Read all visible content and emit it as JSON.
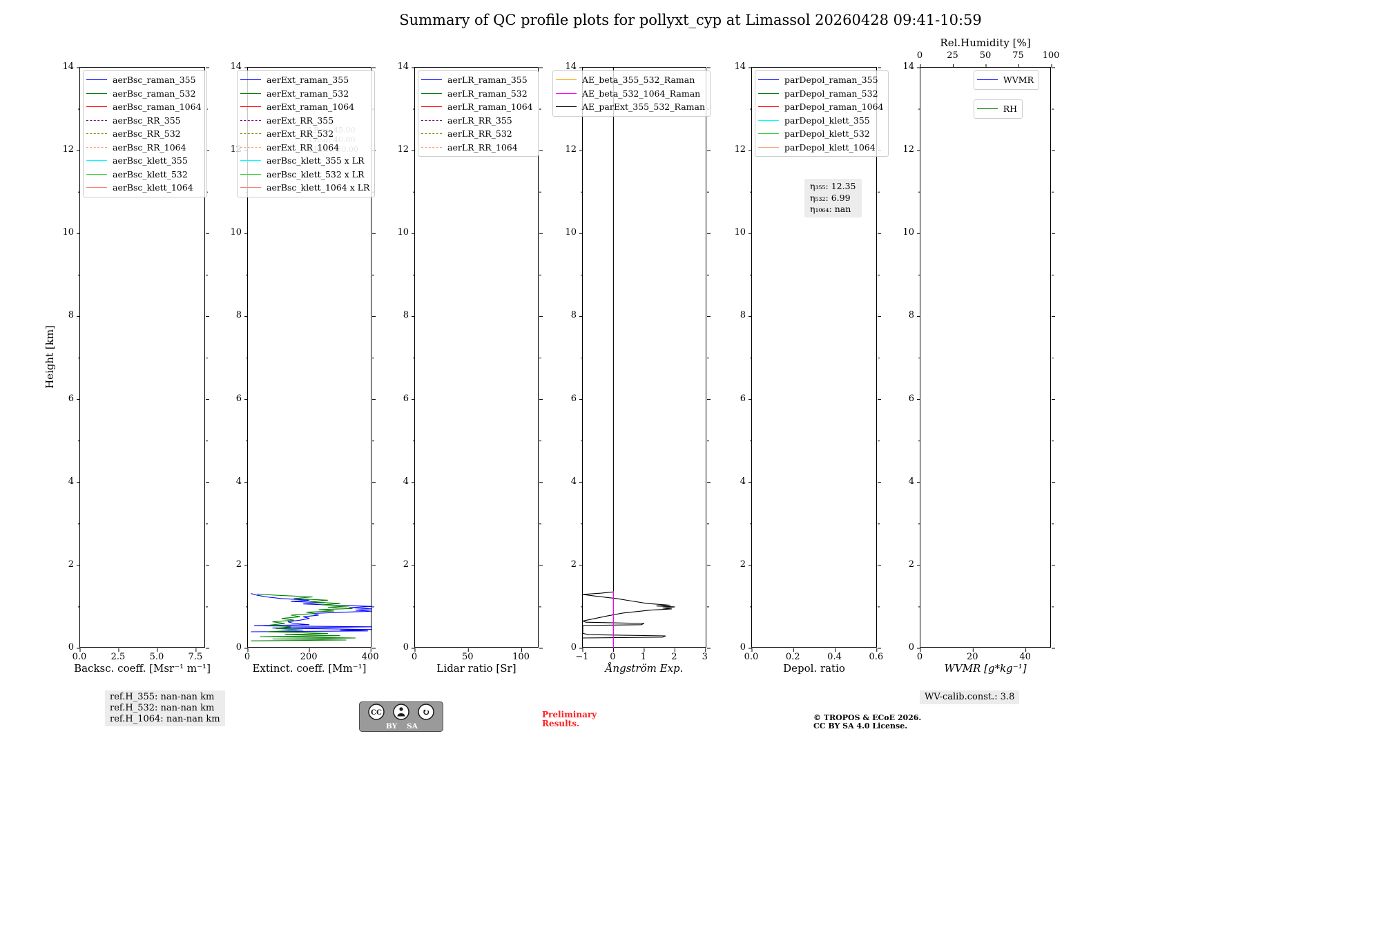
{
  "title": "Summary of QC profile plots for pollyxt_cyp at Limassol 20260428 09:41-10:59",
  "chart_data": {
    "type": "line",
    "title": "Summary of QC profile plots for pollyxt_cyp at Limassol 20260428 09:41-10:59",
    "ylabel": "Height [km]",
    "ylim": [
      0,
      14
    ],
    "y_ticks": [
      0,
      2,
      4,
      6,
      8,
      10,
      12,
      14
    ],
    "panels": [
      {
        "id": "backscatter",
        "xlabel": "Backsc. coeff. [Msr⁻¹ m⁻¹]",
        "italic_xlabel": false,
        "xlim": [
          0,
          8.13
        ],
        "x_ticks": [
          0,
          2.5,
          5,
          7.5
        ],
        "x_tick_labels": [
          "0.0",
          "2.5",
          "5.0",
          "7.5"
        ],
        "legend": [
          {
            "label": "aerBsc_raman_355",
            "color": "#0000ff",
            "dash": false
          },
          {
            "label": "aerBsc_raman_532",
            "color": "#008000",
            "dash": false
          },
          {
            "label": "aerBsc_raman_1064",
            "color": "#ff0000",
            "dash": false
          },
          {
            "label": "aerBsc_RR_355",
            "color": "#800080",
            "dash": true
          },
          {
            "label": "aerBsc_RR_532",
            "color": "#8b8b00",
            "dash": true
          },
          {
            "label": "aerBsc_RR_1064",
            "color": "#ffa07a",
            "dash": true
          },
          {
            "label": "aerBsc_klett_355",
            "color": "#00ffff",
            "dash": false
          },
          {
            "label": "aerBsc_klett_532",
            "color": "#32cd32",
            "dash": false
          },
          {
            "label": "aerBsc_klett_1064",
            "color": "#fa8072",
            "dash": false
          }
        ],
        "series": []
      },
      {
        "id": "extinction",
        "xlabel": "Extinct. coeff. [Mm⁻¹]",
        "italic_xlabel": false,
        "xlim": [
          0,
          404
        ],
        "x_ticks": [
          0,
          200,
          400
        ],
        "x_tick_labels": [
          "0",
          "200",
          "400"
        ],
        "watermark": [
          "LR₃₅₅: 45.00",
          "LR₅₃₂: 40.00",
          "LR₁₀₆₄: 50.00"
        ],
        "legend": [
          {
            "label": "aerExt_raman_355",
            "color": "#0000ff",
            "dash": false
          },
          {
            "label": "aerExt_raman_532",
            "color": "#008000",
            "dash": false
          },
          {
            "label": "aerExt_raman_1064",
            "color": "#ff0000",
            "dash": false
          },
          {
            "label": "aerExt_RR_355",
            "color": "#800080",
            "dash": true
          },
          {
            "label": "aerExt_RR_532",
            "color": "#8b8b00",
            "dash": true
          },
          {
            "label": "aerExt_RR_1064",
            "color": "#ffa07a",
            "dash": true
          },
          {
            "label": "aerBsc_klett_355 x LR",
            "color": "#00ffff",
            "dash": false
          },
          {
            "label": "aerBsc_klett_532 x LR",
            "color": "#32cd32",
            "dash": false
          },
          {
            "label": "aerBsc_klett_1064 x LR",
            "color": "#fa8072",
            "dash": false
          }
        ],
        "series": [
          {
            "name": "aerExt_raman_355",
            "color": "#0000ff",
            "points": [
              [
                10,
                0.4
              ],
              [
                390,
                0.42
              ],
              [
                300,
                0.44
              ],
              [
                404,
                0.455
              ],
              [
                80,
                0.49
              ],
              [
                404,
                0.52
              ],
              [
                20,
                0.545
              ],
              [
                200,
                0.57
              ],
              [
                150,
                0.6
              ],
              [
                130,
                0.64
              ],
              [
                170,
                0.68
              ],
              [
                200,
                0.72
              ],
              [
                180,
                0.76
              ],
              [
                230,
                0.8
              ],
              [
                210,
                0.84
              ],
              [
                310,
                0.87
              ],
              [
                404,
                0.895
              ],
              [
                350,
                0.92
              ],
              [
                404,
                0.95
              ],
              [
                330,
                0.98
              ],
              [
                404,
                1.01
              ],
              [
                280,
                1.04
              ],
              [
                180,
                1.07
              ],
              [
                250,
                1.1
              ],
              [
                140,
                1.13
              ],
              [
                200,
                1.16
              ],
              [
                110,
                1.2
              ],
              [
                60,
                1.24
              ],
              [
                30,
                1.28
              ],
              [
                10,
                1.32
              ]
            ]
          },
          {
            "name": "aerExt_raman_532",
            "color": "#008000",
            "points": [
              [
                10,
                0.18
              ],
              [
                320,
                0.2
              ],
              [
                80,
                0.225
              ],
              [
                350,
                0.25
              ],
              [
                40,
                0.28
              ],
              [
                300,
                0.305
              ],
              [
                120,
                0.33
              ],
              [
                260,
                0.36
              ],
              [
                60,
                0.4
              ],
              [
                180,
                0.44
              ],
              [
                90,
                0.48
              ],
              [
                140,
                0.52
              ],
              [
                70,
                0.56
              ],
              [
                120,
                0.6
              ],
              [
                80,
                0.64
              ],
              [
                150,
                0.68
              ],
              [
                110,
                0.72
              ],
              [
                170,
                0.76
              ],
              [
                140,
                0.8
              ],
              [
                220,
                0.84
              ],
              [
                190,
                0.87
              ],
              [
                280,
                0.9
              ],
              [
                230,
                0.93
              ],
              [
                340,
                0.96
              ],
              [
                260,
                0.99
              ],
              [
                330,
                1.02
              ],
              [
                240,
                1.05
              ],
              [
                300,
                1.08
              ],
              [
                200,
                1.12
              ],
              [
                260,
                1.16
              ],
              [
                150,
                1.2
              ],
              [
                210,
                1.24
              ],
              [
                90,
                1.28
              ],
              [
                30,
                1.31
              ]
            ]
          }
        ]
      },
      {
        "id": "lidar-ratio",
        "xlabel": "Lidar ratio [Sr]",
        "italic_xlabel": false,
        "xlim": [
          0,
          116.5
        ],
        "x_ticks": [
          0,
          50,
          100
        ],
        "x_tick_labels": [
          "0",
          "50",
          "100"
        ],
        "legend": [
          {
            "label": "aerLR_raman_355",
            "color": "#0000ff",
            "dash": false
          },
          {
            "label": "aerLR_raman_532",
            "color": "#008000",
            "dash": false
          },
          {
            "label": "aerLR_raman_1064",
            "color": "#ff0000",
            "dash": false
          },
          {
            "label": "aerLR_RR_355",
            "color": "#800080",
            "dash": true
          },
          {
            "label": "aerLR_RR_532",
            "color": "#8b8b00",
            "dash": true
          },
          {
            "label": "aerLR_RR_1064",
            "color": "#ffa07a",
            "dash": true
          }
        ],
        "series": []
      },
      {
        "id": "angstrom",
        "xlabel": "Ångström Exp.",
        "italic_xlabel": true,
        "xlim": [
          -1,
          3.05
        ],
        "x_ticks": [
          -1,
          0,
          1,
          2,
          3
        ],
        "x_tick_labels": [
          "−1",
          "0",
          "1",
          "2",
          "3"
        ],
        "legend": [
          {
            "label": "AE_beta_355_532_Raman",
            "color": "#ffa500",
            "dash": false
          },
          {
            "label": "AE_beta_532_1064_Raman",
            "color": "#ff00ff",
            "dash": false
          },
          {
            "label": "AE_parExt_355_532_Raman",
            "color": "#000000",
            "dash": false
          }
        ],
        "series": [
          {
            "name": "AE_parExt_355_532_Raman_zero_line",
            "color": "#000000",
            "points": [
              [
                0,
                0
              ],
              [
                0,
                14
              ]
            ]
          },
          {
            "name": "AE_parExt_355_532_Raman",
            "color": "#000000",
            "points": [
              [
                -1.0,
                0.25
              ],
              [
                1.6,
                0.27
              ],
              [
                1.7,
                0.3
              ],
              [
                -0.8,
                0.33
              ],
              [
                -1.0,
                0.36
              ],
              [
                -1.0,
                0.55
              ],
              [
                0.9,
                0.57
              ],
              [
                1.0,
                0.6
              ],
              [
                -0.9,
                0.63
              ],
              [
                -1.0,
                0.66
              ],
              [
                -0.2,
                0.78
              ],
              [
                0.3,
                0.85
              ],
              [
                1.2,
                0.92
              ],
              [
                1.9,
                0.95
              ],
              [
                1.6,
                0.97
              ],
              [
                2.0,
                1.0
              ],
              [
                1.4,
                1.02
              ],
              [
                1.85,
                1.04
              ],
              [
                1.1,
                1.08
              ],
              [
                0.6,
                1.14
              ],
              [
                0.1,
                1.2
              ],
              [
                -0.6,
                1.26
              ],
              [
                -1.0,
                1.3
              ],
              [
                -0.4,
                1.33
              ],
              [
                0.0,
                1.36
              ]
            ]
          },
          {
            "name": "AE_beta_532_1064_Raman",
            "color": "#ff00ff",
            "points": [
              [
                0,
                0
              ],
              [
                0,
                1.38
              ]
            ]
          }
        ]
      },
      {
        "id": "depol-ratio",
        "xlabel": "Depol. ratio",
        "italic_xlabel": false,
        "xlim": [
          0,
          0.604
        ],
        "x_ticks": [
          0,
          0.2,
          0.4,
          0.6
        ],
        "x_tick_labels": [
          "0.0",
          "0.2",
          "0.4",
          "0.6"
        ],
        "legend": [
          {
            "label": "parDepol_raman_355",
            "color": "#0000ff",
            "dash": false
          },
          {
            "label": "parDepol_raman_532",
            "color": "#008000",
            "dash": false
          },
          {
            "label": "parDepol_raman_1064",
            "color": "#ff0000",
            "dash": false
          },
          {
            "label": "parDepol_klett_355",
            "color": "#00ffff",
            "dash": false
          },
          {
            "label": "parDepol_klett_532",
            "color": "#32cd32",
            "dash": false
          },
          {
            "label": "parDepol_klett_1064",
            "color": "#ffa07a",
            "dash": false
          }
        ],
        "annotation": {
          "lines": [
            "η₃₅₅: 12.35",
            "η₅₃₂: 6.99",
            "η₁₀₆₄: nan"
          ]
        },
        "series": []
      },
      {
        "id": "wvmr",
        "xlabel": "WVMR [g*kg⁻¹]",
        "italic_xlabel": true,
        "xlim": [
          0,
          49.8
        ],
        "x_ticks": [
          0,
          20,
          40
        ],
        "x_tick_labels": [
          "0",
          "20",
          "40"
        ],
        "top_axis": {
          "label": "Rel.Humidity [%]",
          "xlim": [
            0,
            100
          ],
          "ticks": [
            0,
            25,
            50,
            75,
            100
          ],
          "tick_labels": [
            "0",
            "25",
            "50",
            "75",
            "100"
          ]
        },
        "legends": [
          {
            "entries": [
              {
                "label": "WVMR",
                "color": "#0000ff",
                "dash": false
              }
            ]
          },
          {
            "entries": [
              {
                "label": "RH",
                "color": "#008000",
                "dash": false
              }
            ]
          }
        ],
        "series": []
      }
    ]
  },
  "footer": {
    "ref_heights": "ref.H_355: nan-nan km\nref.H_532: nan-nan km\nref.H_1064: nan-nan km",
    "preliminary": "Preliminary\nResults.",
    "license": "© TROPOS & ECoE 2026.\nCC BY SA 4.0 License.",
    "wv_calib": "WV-calib.const.: 3.8",
    "cc_badge": {
      "cc": "CC",
      "by": "BY",
      "sa": "SA"
    }
  }
}
